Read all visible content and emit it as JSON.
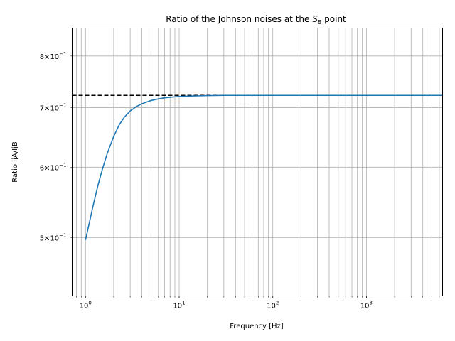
{
  "chart_data": {
    "type": "line",
    "title": "Ratio of the Johnson noises at the",
    "title_math_symbol": "S",
    "title_math_subscript": "B",
    "title_suffix": " point",
    "xlabel": "Frequency [Hz]",
    "ylabel": "Ratio IjA/IjB",
    "x_scale": "log",
    "y_scale": "log",
    "xlim": [
      0.72,
      6500
    ],
    "ylim": [
      0.43,
      0.86
    ],
    "grid": true,
    "x_ticks": [
      {
        "value": 1,
        "base": "10",
        "exp": "0"
      },
      {
        "value": 10,
        "base": "10",
        "exp": "1"
      },
      {
        "value": 100,
        "base": "10",
        "exp": "2"
      },
      {
        "value": 1000,
        "base": "10",
        "exp": "3"
      }
    ],
    "y_ticks": [
      {
        "value": 0.5,
        "mant": "5",
        "base": "10",
        "exp": "−1"
      },
      {
        "value": 0.6,
        "mant": "6",
        "base": "10",
        "exp": "−1"
      },
      {
        "value": 0.7,
        "mant": "7",
        "base": "10",
        "exp": "−1"
      },
      {
        "value": 0.8,
        "mant": "8",
        "base": "10",
        "exp": "−1"
      }
    ],
    "series": [
      {
        "color": "#1f77b4",
        "x": [
          1.0,
          1.1,
          1.2,
          1.35,
          1.5,
          1.7,
          2.0,
          2.3,
          2.6,
          3.0,
          3.5,
          4.0,
          5.0,
          6.0,
          7.0,
          8.0,
          10.0,
          12.0,
          15.0,
          20.0,
          30.0,
          50.0,
          100.0,
          300.0,
          1000.0,
          6500.0
        ],
        "y": [
          0.497,
          0.52,
          0.542,
          0.571,
          0.595,
          0.621,
          0.65,
          0.67,
          0.683,
          0.694,
          0.702,
          0.707,
          0.713,
          0.716,
          0.718,
          0.719,
          0.7205,
          0.721,
          0.7215,
          0.722,
          0.7225,
          0.7225,
          0.7225,
          0.7225,
          0.7225,
          0.7225
        ]
      }
    ],
    "reference_line": {
      "y": 0.7225,
      "color": "#000000",
      "style": "dashed"
    }
  }
}
